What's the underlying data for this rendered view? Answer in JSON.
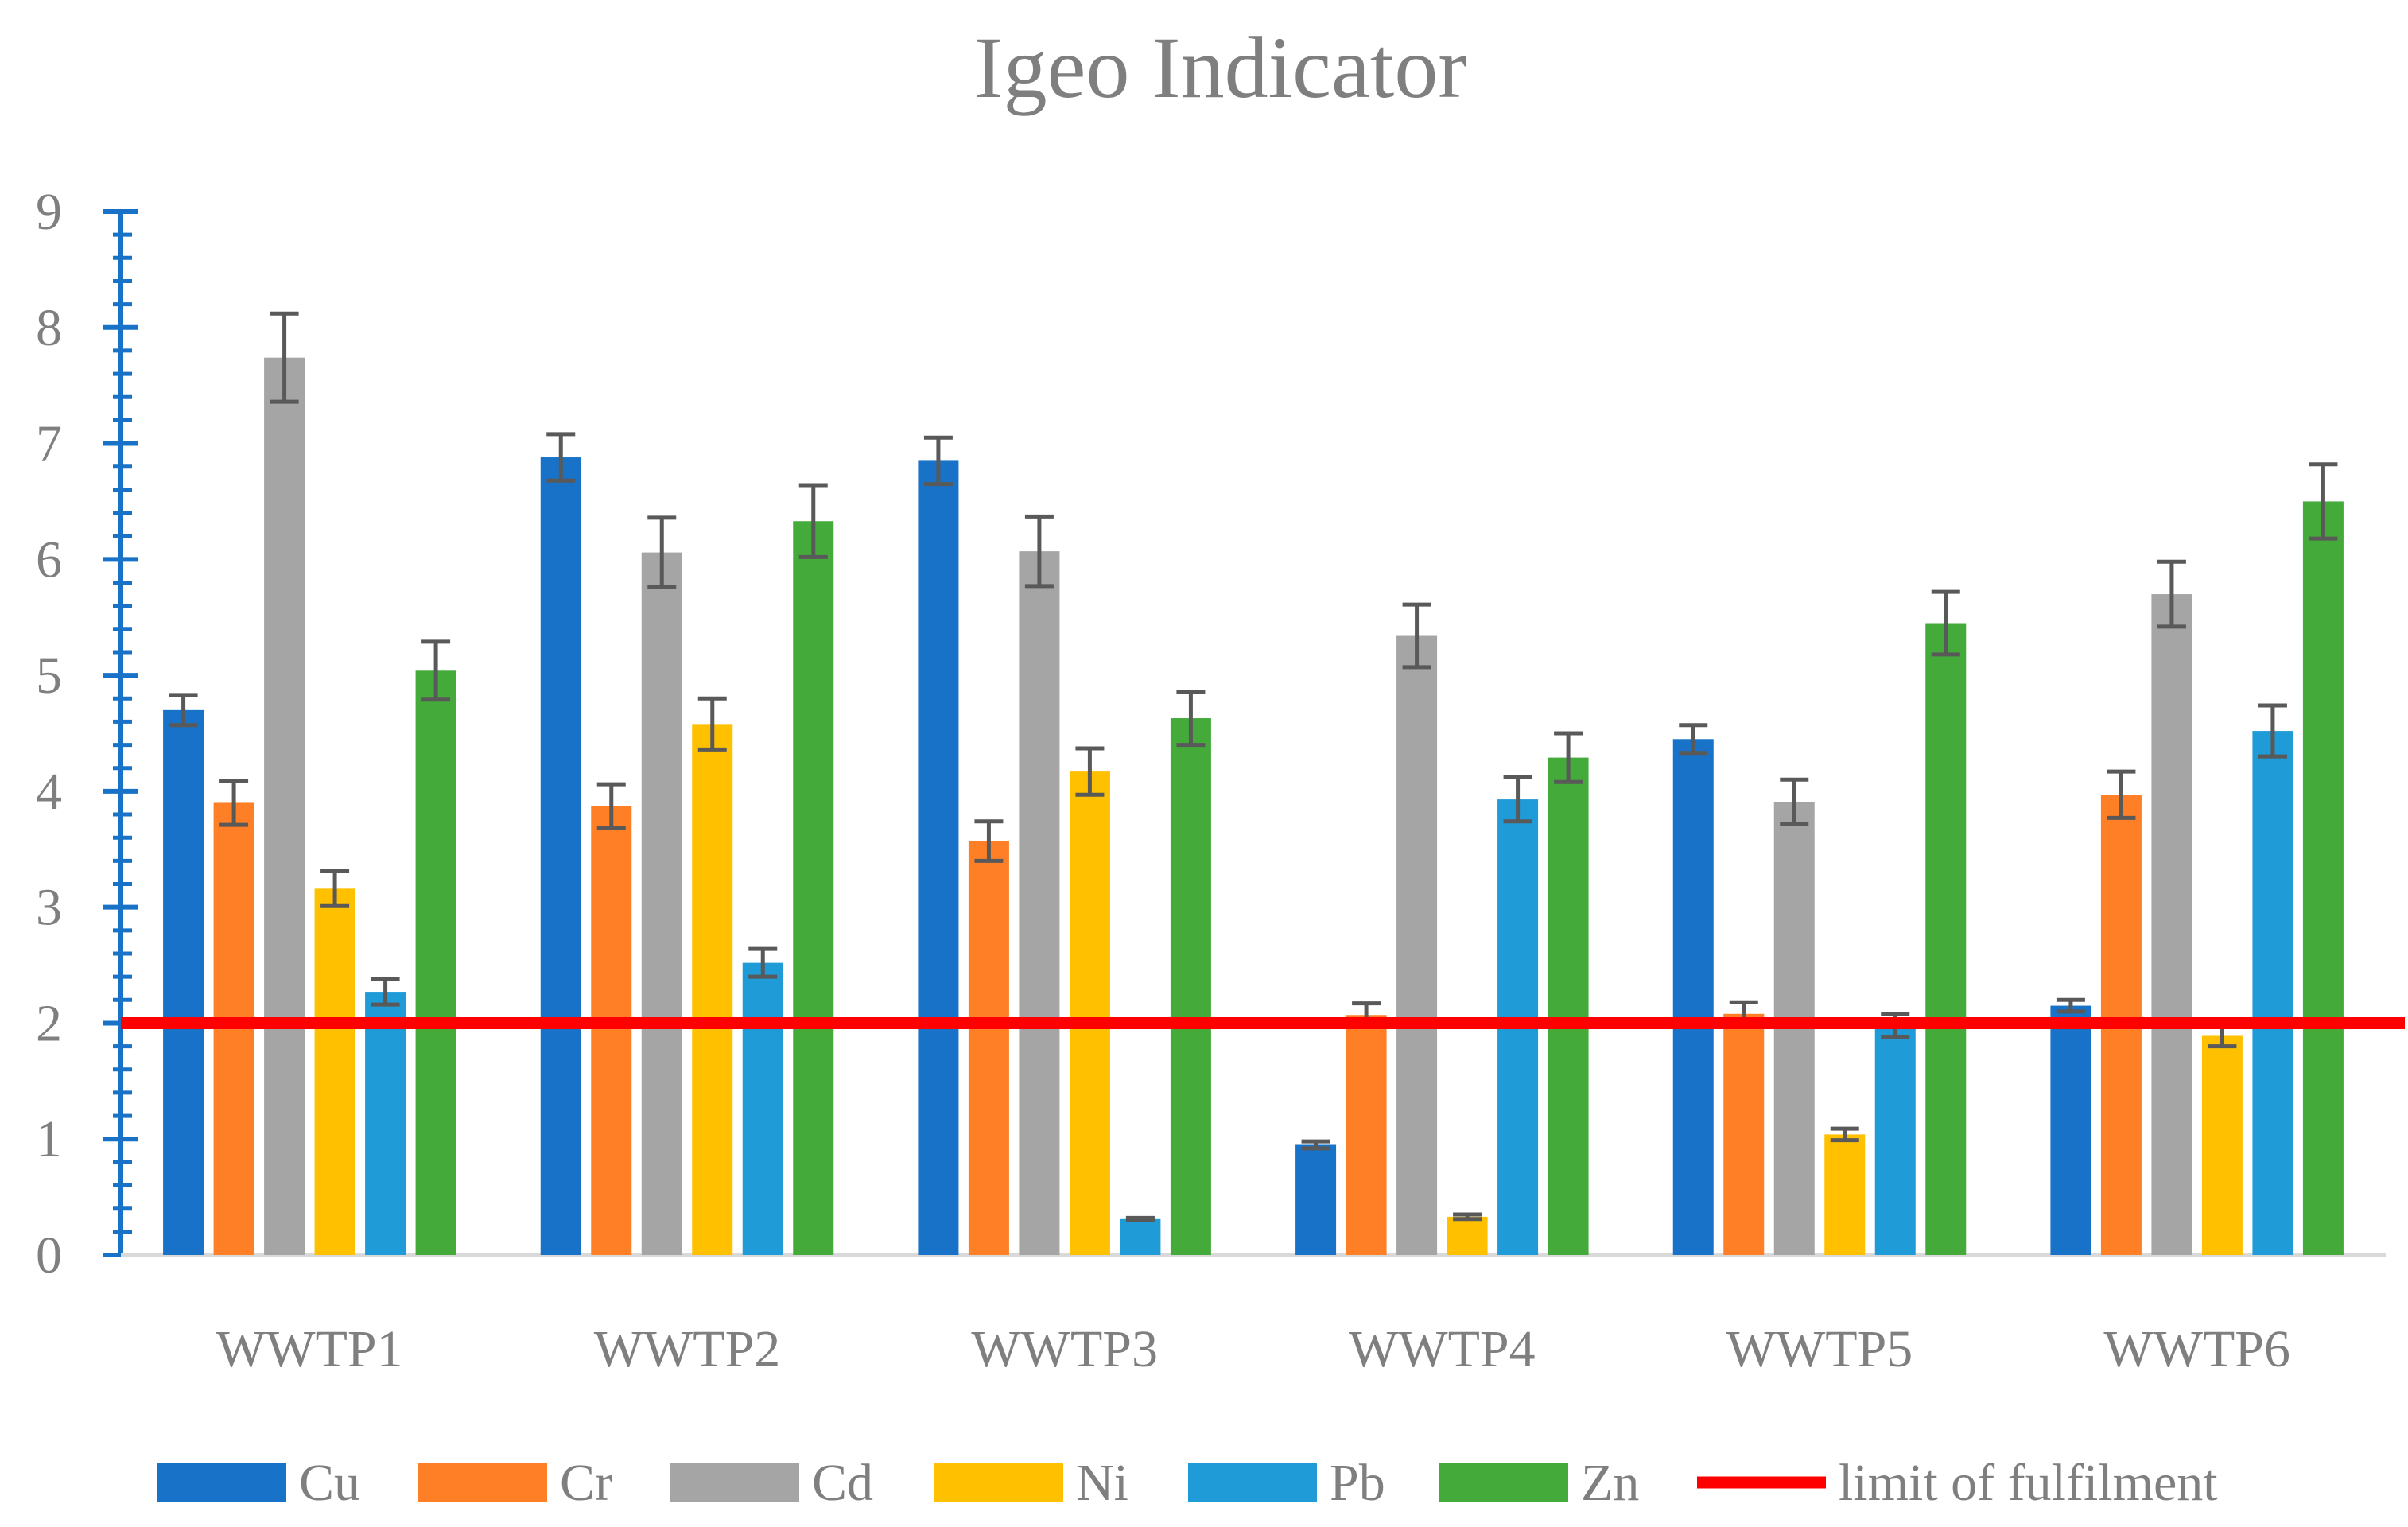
{
  "chart_data": {
    "type": "bar",
    "title": "Igeo Indicator",
    "xlabel": "",
    "ylabel": "",
    "ylim": [
      0,
      9
    ],
    "yticks": [
      "0",
      "1",
      "2",
      "3",
      "4",
      "5",
      "6",
      "7",
      "8",
      "9"
    ],
    "categories": [
      "WWTP1",
      "WWTP2",
      "WWTP3",
      "WWTP4",
      "WWTP5",
      "WWTP6"
    ],
    "series": [
      {
        "name": "Cu",
        "color": "#1872c8",
        "values": [
          4.7,
          6.88,
          6.85,
          0.95,
          4.45,
          2.15
        ],
        "errors": [
          0.13,
          0.2,
          0.2,
          0.03,
          0.12,
          0.05
        ]
      },
      {
        "name": "Cr",
        "color": "#fe7f26",
        "values": [
          3.9,
          3.87,
          3.57,
          2.07,
          2.08,
          3.97
        ],
        "errors": [
          0.19,
          0.19,
          0.17,
          0.1,
          0.1,
          0.2
        ]
      },
      {
        "name": "Cd",
        "color": "#a5a5a5",
        "values": [
          7.74,
          6.06,
          6.07,
          5.34,
          3.91,
          5.7
        ],
        "errors": [
          0.38,
          0.3,
          0.3,
          0.27,
          0.19,
          0.28
        ]
      },
      {
        "name": "Ni",
        "color": "#ffc000",
        "values": [
          3.16,
          4.58,
          4.17,
          0.33,
          1.04,
          1.89
        ],
        "errors": [
          0.15,
          0.22,
          0.2,
          0.02,
          0.05,
          0.09
        ]
      },
      {
        "name": "Pb",
        "color": "#1f9bd7",
        "values": [
          2.27,
          2.52,
          0.31,
          3.93,
          1.98,
          4.52
        ],
        "errors": [
          0.11,
          0.12,
          0.01,
          0.19,
          0.1,
          0.22
        ]
      },
      {
        "name": "Zn",
        "color": "#44ab3b",
        "values": [
          5.04,
          6.33,
          4.63,
          4.29,
          5.45,
          6.5
        ],
        "errors": [
          0.25,
          0.31,
          0.23,
          0.21,
          0.27,
          0.32
        ]
      }
    ],
    "reference_line": {
      "name": "limit of fulfilment",
      "value": 2,
      "color": "#ff0000"
    },
    "legend_position": "bottom",
    "grid": false
  }
}
